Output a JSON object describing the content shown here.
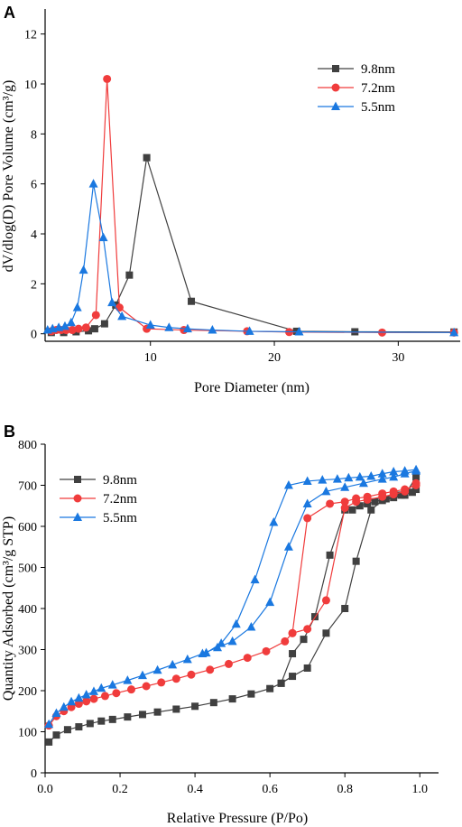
{
  "chart_data": [
    {
      "panel": "A",
      "type": "line",
      "xlabel": "Pore Diameter (nm)",
      "ylabel": "dV/dlog(D) Pore Volume (cm³/g)",
      "xlim": [
        1.5,
        35
      ],
      "ylim": [
        -0.3,
        13
      ],
      "xticks": [
        10,
        20,
        30
      ],
      "yticks": [
        0,
        2,
        4,
        6,
        8,
        10,
        12
      ],
      "legend_position": "top-right",
      "series": [
        {
          "name": "9.8nm",
          "color": "#404040",
          "marker": "square",
          "points": [
            [
              2.0,
              0.05
            ],
            [
              3.0,
              0.05
            ],
            [
              4.0,
              0.08
            ],
            [
              5.0,
              0.12
            ],
            [
              5.5,
              0.2
            ],
            [
              6.3,
              0.4
            ],
            [
              7.2,
              1.15
            ],
            [
              8.3,
              2.35
            ],
            [
              9.7,
              7.05
            ],
            [
              13.3,
              1.3
            ],
            [
              21.8,
              0.1
            ],
            [
              26.5,
              0.08
            ],
            [
              34.5,
              0.07
            ]
          ]
        },
        {
          "name": "7.2nm",
          "color": "#f03c3c",
          "marker": "circle",
          "points": [
            [
              2.0,
              0.1
            ],
            [
              2.4,
              0.15
            ],
            [
              2.8,
              0.15
            ],
            [
              3.2,
              0.15
            ],
            [
              3.7,
              0.15
            ],
            [
              4.2,
              0.2
            ],
            [
              4.8,
              0.25
            ],
            [
              5.6,
              0.75
            ],
            [
              6.5,
              10.2
            ],
            [
              7.5,
              1.05
            ],
            [
              9.7,
              0.2
            ],
            [
              12.7,
              0.15
            ],
            [
              17.8,
              0.1
            ],
            [
              21.2,
              0.07
            ],
            [
              28.7,
              0.05
            ],
            [
              34.5,
              0.05
            ]
          ]
        },
        {
          "name": "5.5nm",
          "color": "#1a78e0",
          "marker": "triangle",
          "points": [
            [
              1.7,
              0.15
            ],
            [
              2.1,
              0.2
            ],
            [
              2.6,
              0.25
            ],
            [
              3.1,
              0.3
            ],
            [
              3.6,
              0.45
            ],
            [
              4.1,
              1.05
            ],
            [
              4.6,
              2.55
            ],
            [
              5.4,
              6.0
            ],
            [
              6.2,
              3.85
            ],
            [
              6.9,
              1.25
            ],
            [
              7.7,
              0.7
            ],
            [
              10.0,
              0.35
            ],
            [
              11.5,
              0.25
            ],
            [
              13.0,
              0.2
            ],
            [
              15.0,
              0.15
            ],
            [
              18.0,
              0.1
            ],
            [
              22.0,
              0.08
            ],
            [
              34.5,
              0.05
            ]
          ]
        }
      ]
    },
    {
      "panel": "B",
      "type": "line",
      "xlabel": "Relative Pressure (P/Po)",
      "ylabel": "Quantity Adsorbed (cm³/g STP)",
      "xlim": [
        0,
        1.05
      ],
      "ylim": [
        0,
        800
      ],
      "xticks": [
        0.0,
        0.2,
        0.4,
        0.6,
        0.8,
        1.0
      ],
      "yticks": [
        0,
        100,
        200,
        300,
        400,
        500,
        600,
        700,
        800
      ],
      "legend_position": "top-left",
      "series": [
        {
          "name": "9.8nm",
          "color": "#404040",
          "marker": "square",
          "points": [
            [
              0.01,
              75
            ],
            [
              0.03,
              92
            ],
            [
              0.06,
              105
            ],
            [
              0.09,
              112
            ],
            [
              0.12,
              120
            ],
            [
              0.15,
              126
            ],
            [
              0.18,
              130
            ],
            [
              0.22,
              136
            ],
            [
              0.26,
              142
            ],
            [
              0.3,
              148
            ],
            [
              0.35,
              155
            ],
            [
              0.4,
              162
            ],
            [
              0.45,
              171
            ],
            [
              0.5,
              180
            ],
            [
              0.55,
              192
            ],
            [
              0.6,
              205
            ],
            [
              0.63,
              218
            ],
            [
              0.66,
              235
            ],
            [
              0.7,
              255
            ],
            [
              0.75,
              340
            ],
            [
              0.8,
              400
            ],
            [
              0.83,
              515
            ],
            [
              0.87,
              640
            ],
            [
              0.9,
              663
            ],
            [
              0.93,
              670
            ],
            [
              0.96,
              676
            ],
            [
              0.99,
              720
            ],
            [
              0.99,
              690
            ],
            [
              0.98,
              683
            ],
            [
              0.95,
              676
            ],
            [
              0.91,
              667
            ],
            [
              0.88,
              660
            ],
            [
              0.86,
              655
            ],
            [
              0.84,
              650
            ],
            [
              0.82,
              640
            ],
            [
              0.8,
              640
            ],
            [
              0.76,
              530
            ],
            [
              0.72,
              380
            ],
            [
              0.69,
              325
            ],
            [
              0.66,
              290
            ],
            [
              0.63,
              218
            ]
          ]
        },
        {
          "name": "7.2nm",
          "color": "#f03c3c",
          "marker": "circle",
          "points": [
            [
              0.01,
              115
            ],
            [
              0.03,
              138
            ],
            [
              0.05,
              150
            ],
            [
              0.07,
              160
            ],
            [
              0.09,
              168
            ],
            [
              0.11,
              174
            ],
            [
              0.13,
              180
            ],
            [
              0.16,
              187
            ],
            [
              0.19,
              194
            ],
            [
              0.23,
              203
            ],
            [
              0.27,
              211
            ],
            [
              0.31,
              220
            ],
            [
              0.35,
              229
            ],
            [
              0.39,
              239
            ],
            [
              0.44,
              251
            ],
            [
              0.49,
              265
            ],
            [
              0.54,
              280
            ],
            [
              0.59,
              296
            ],
            [
              0.64,
              320
            ],
            [
              0.66,
              340
            ],
            [
              0.7,
              350
            ],
            [
              0.75,
              420
            ],
            [
              0.8,
              645
            ],
            [
              0.83,
              660
            ],
            [
              0.86,
              665
            ],
            [
              0.9,
              672
            ],
            [
              0.93,
              678
            ],
            [
              0.96,
              685
            ],
            [
              0.99,
              705
            ],
            [
              0.99,
              700
            ],
            [
              0.96,
              690
            ],
            [
              0.93,
              685
            ],
            [
              0.9,
              680
            ],
            [
              0.86,
              672
            ],
            [
              0.83,
              668
            ],
            [
              0.8,
              660
            ],
            [
              0.76,
              655
            ],
            [
              0.7,
              620
            ],
            [
              0.66,
              340
            ]
          ]
        },
        {
          "name": "5.5nm",
          "color": "#1a78e0",
          "marker": "triangle",
          "points": [
            [
              0.01,
              118
            ],
            [
              0.03,
              145
            ],
            [
              0.05,
              160
            ],
            [
              0.07,
              173
            ],
            [
              0.09,
              182
            ],
            [
              0.11,
              190
            ],
            [
              0.13,
              198
            ],
            [
              0.15,
              206
            ],
            [
              0.18,
              214
            ],
            [
              0.22,
              225
            ],
            [
              0.26,
              237
            ],
            [
              0.3,
              250
            ],
            [
              0.34,
              263
            ],
            [
              0.38,
              276
            ],
            [
              0.42,
              290
            ],
            [
              0.46,
              305
            ],
            [
              0.5,
              320
            ],
            [
              0.55,
              355
            ],
            [
              0.6,
              415
            ],
            [
              0.65,
              550
            ],
            [
              0.7,
              655
            ],
            [
              0.75,
              685
            ],
            [
              0.8,
              695
            ],
            [
              0.85,
              705
            ],
            [
              0.9,
              715
            ],
            [
              0.93,
              720
            ],
            [
              0.96,
              728
            ],
            [
              0.99,
              735
            ],
            [
              0.99,
              738
            ],
            [
              0.96,
              735
            ],
            [
              0.93,
              733
            ],
            [
              0.9,
              728
            ],
            [
              0.87,
              722
            ],
            [
              0.84,
              720
            ],
            [
              0.81,
              718
            ],
            [
              0.78,
              715
            ],
            [
              0.74,
              713
            ],
            [
              0.7,
              710
            ],
            [
              0.65,
              700
            ],
            [
              0.61,
              610
            ],
            [
              0.56,
              470
            ],
            [
              0.51,
              362
            ],
            [
              0.47,
              315
            ],
            [
              0.43,
              292
            ]
          ]
        }
      ]
    }
  ]
}
